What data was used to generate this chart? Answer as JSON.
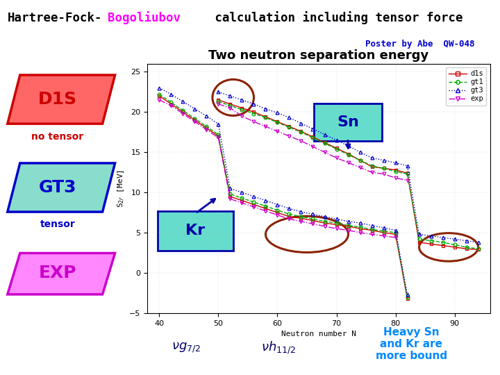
{
  "title_part1": "Hartree-Fock-",
  "title_part2": "Bogoliubov",
  "title_part3": " calculation including tensor force",
  "title_color1": "#000000",
  "title_color2": "#ff00ff",
  "title_color3": "#000000",
  "poster_text": "Poster by Abe  QW-048",
  "poster_color": "#0000cc",
  "subtitle": "Two neutron separation energy",
  "bg_color": "#ffffff",
  "header_bg": "#66ddee",
  "ylabel": "S$_{2r}$ [MeV]",
  "xlabel": "Neutron number N",
  "xlim": [
    38,
    96
  ],
  "ylim": [
    -5,
    26
  ],
  "xticks": [
    40,
    50,
    60,
    70,
    80,
    90
  ],
  "yticks": [
    -5,
    0,
    5,
    10,
    15,
    20,
    25
  ],
  "legend_labels": [
    "d1s",
    "gt1",
    "gt3",
    "exp"
  ],
  "legend_colors": [
    "#cc0000",
    "#00aa00",
    "#0000cc",
    "#cc00cc"
  ],
  "legend_markers": [
    "s",
    "o",
    "^",
    "v"
  ],
  "no_tensor": "no tensor",
  "tensor": "tensor",
  "heavy_text": "Heavy Sn\nand Kr are\nmore bound",
  "n_sn": [
    50,
    52,
    54,
    56,
    58,
    60,
    62,
    64,
    66,
    68,
    70,
    72,
    74,
    76,
    78,
    80,
    82,
    84,
    86,
    88,
    90,
    92,
    94
  ],
  "sn_d1s": [
    21.5,
    21.0,
    20.5,
    20.0,
    19.4,
    18.8,
    18.2,
    17.6,
    16.9,
    16.2,
    15.5,
    14.8,
    14.0,
    13.2,
    13.0,
    12.8,
    12.4,
    3.8,
    3.6,
    3.4,
    3.2,
    3.0,
    2.9
  ],
  "sn_gt1": [
    21.3,
    20.8,
    20.3,
    19.8,
    19.3,
    18.7,
    18.1,
    17.5,
    16.8,
    16.1,
    15.4,
    14.7,
    14.0,
    13.3,
    13.0,
    12.6,
    12.3,
    4.2,
    4.0,
    3.8,
    3.5,
    3.2,
    3.0
  ],
  "sn_gt3": [
    22.5,
    22.0,
    21.5,
    21.0,
    20.4,
    19.9,
    19.3,
    18.6,
    17.9,
    17.2,
    16.5,
    15.8,
    15.0,
    14.3,
    14.0,
    13.7,
    13.3,
    4.8,
    4.6,
    4.4,
    4.2,
    4.0,
    3.8
  ],
  "sn_exp": [
    21.0,
    20.5,
    19.5,
    18.8,
    18.2,
    17.6,
    17.0,
    16.4,
    15.7,
    15.0,
    14.3,
    13.7,
    13.1,
    12.5,
    12.3,
    11.8,
    11.5,
    null,
    null,
    null,
    null,
    null,
    null
  ],
  "n_kr": [
    40,
    42,
    44,
    46,
    48,
    50,
    52,
    54,
    56,
    58,
    60,
    62,
    64,
    66,
    68,
    70,
    72,
    74,
    76,
    78,
    80,
    82
  ],
  "kr_d1s": [
    22.0,
    21.0,
    20.0,
    19.0,
    18.0,
    17.0,
    9.5,
    9.0,
    8.5,
    8.0,
    7.5,
    7.0,
    6.8,
    6.5,
    6.2,
    6.0,
    5.8,
    5.5,
    5.3,
    5.0,
    4.8,
    -3.2
  ],
  "kr_gt1": [
    22.2,
    21.2,
    20.2,
    19.2,
    18.2,
    17.2,
    9.8,
    9.3,
    8.8,
    8.3,
    7.8,
    7.3,
    7.0,
    6.7,
    6.4,
    6.2,
    5.9,
    5.7,
    5.4,
    5.2,
    5.0,
    -3.0
  ],
  "kr_gt3": [
    23.0,
    22.2,
    21.3,
    20.4,
    19.5,
    18.5,
    10.5,
    10.0,
    9.5,
    9.0,
    8.5,
    8.0,
    7.6,
    7.3,
    7.0,
    6.7,
    6.4,
    6.2,
    5.9,
    5.6,
    5.3,
    -2.7
  ],
  "kr_exp": [
    21.5,
    20.8,
    19.8,
    18.8,
    17.8,
    16.8,
    9.2,
    8.7,
    8.2,
    7.7,
    7.2,
    6.7,
    6.4,
    6.1,
    5.8,
    5.5,
    5.3,
    5.0,
    4.8,
    4.6,
    4.4,
    null
  ]
}
